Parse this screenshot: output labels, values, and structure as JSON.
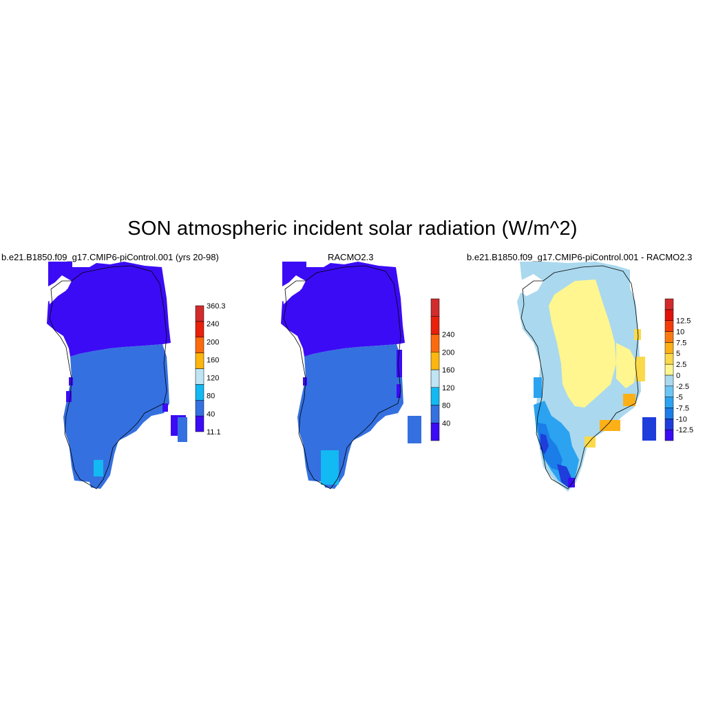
{
  "title": "SON atmospheric incident solar radiation (W/m^2)",
  "panels": [
    {
      "id": "left",
      "title": "b.e21.B1850.f09_g17.CMIP6-piControl.001 (yrs 20-98)",
      "colorbar": {
        "colors": [
          "#3b0bf5",
          "#3470e0",
          "#13b9f2",
          "#bfe4f4",
          "#fcb60d",
          "#fc6a0e",
          "#e8200c",
          "#d12b2b"
        ],
        "labels": [
          "11.1",
          "40",
          "80",
          "120",
          "160",
          "200",
          "240",
          "360.3"
        ]
      }
    },
    {
      "id": "mid",
      "title": "RACMO2.3",
      "colorbar": {
        "colors": [
          "#3b0bf5",
          "#3470e0",
          "#13b9f2",
          "#bfe4f4",
          "#fcb60d",
          "#fc6a0e",
          "#e8200c",
          "#d12b2b"
        ],
        "labels": [
          "40",
          "80",
          "120",
          "160",
          "200",
          "240"
        ]
      }
    },
    {
      "id": "right",
      "title": "b.e21.B1850.f09_g17.CMIP6-piControl.001 - RACMO2.3",
      "colorbar": {
        "colors": [
          "#3b0bf5",
          "#1e3ddb",
          "#1a7de8",
          "#2ba3f0",
          "#6cc6f5",
          "#aad8ee",
          "#fff68f",
          "#fcd94a",
          "#fcb017",
          "#fc7a10",
          "#f43c0a",
          "#e0120a",
          "#d12b2b"
        ],
        "labels": [
          "-12.5",
          "-10",
          "-7.5",
          "-5",
          "-2.5",
          "0",
          "2.5",
          "5",
          "7.5",
          "10",
          "12.5"
        ]
      }
    }
  ]
}
